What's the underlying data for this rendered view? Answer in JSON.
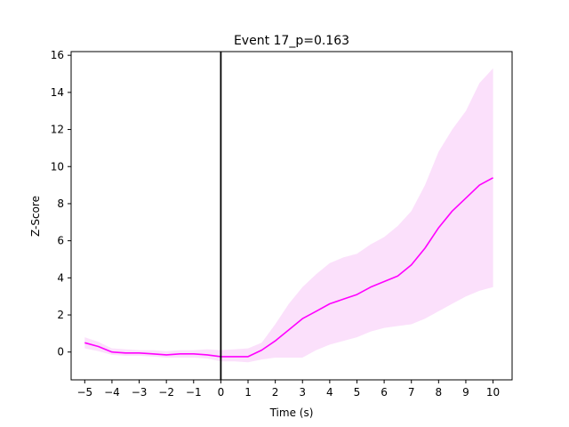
{
  "chart_data": {
    "type": "line",
    "title": "Event 17_p=0.163",
    "xlabel": "Time (s)",
    "ylabel": "Z-Score",
    "xlim": [
      -5.5,
      10.7
    ],
    "ylim": [
      -1.5,
      16.2
    ],
    "xticks": [
      -5,
      -4,
      -3,
      -2,
      -1,
      0,
      1,
      2,
      3,
      4,
      5,
      6,
      7,
      8,
      9,
      10
    ],
    "yticks": [
      0,
      2,
      4,
      6,
      8,
      10,
      12,
      14,
      16
    ],
    "grid": false,
    "event_line_x": 0,
    "series": [
      {
        "color": "#ff00ff",
        "band_color": "#fbe0fb",
        "x": [
          -5,
          -4.5,
          -4,
          -3.5,
          -3,
          -2.5,
          -2,
          -1.5,
          -1,
          -0.5,
          0,
          0.5,
          1,
          1.5,
          2,
          2.5,
          3,
          3.5,
          4,
          4.5,
          5,
          5.5,
          6,
          6.5,
          7,
          7.5,
          8,
          8.5,
          9,
          9.5,
          10
        ],
        "mean": [
          0.5,
          0.3,
          0.0,
          -0.05,
          -0.05,
          -0.1,
          -0.15,
          -0.1,
          -0.1,
          -0.15,
          -0.25,
          -0.25,
          -0.25,
          0.1,
          0.6,
          1.2,
          1.8,
          2.2,
          2.6,
          2.85,
          3.1,
          3.5,
          3.8,
          4.1,
          4.7,
          5.6,
          6.7,
          7.6,
          8.3,
          9.0,
          9.4
        ],
        "upper": [
          0.8,
          0.55,
          0.2,
          0.15,
          0.1,
          0.1,
          0.05,
          0.1,
          0.1,
          0.15,
          0.1,
          0.15,
          0.2,
          0.5,
          1.5,
          2.6,
          3.5,
          4.2,
          4.8,
          5.1,
          5.3,
          5.8,
          6.2,
          6.8,
          7.6,
          9.0,
          10.8,
          12.0,
          13.0,
          14.5,
          15.3
        ],
        "lower": [
          0.2,
          0.05,
          -0.15,
          -0.2,
          -0.2,
          -0.25,
          -0.3,
          -0.3,
          -0.3,
          -0.35,
          -0.5,
          -0.5,
          -0.55,
          -0.4,
          -0.3,
          -0.3,
          -0.3,
          0.1,
          0.4,
          0.6,
          0.8,
          1.1,
          1.3,
          1.4,
          1.5,
          1.8,
          2.2,
          2.6,
          3.0,
          3.3,
          3.5
        ]
      }
    ]
  }
}
